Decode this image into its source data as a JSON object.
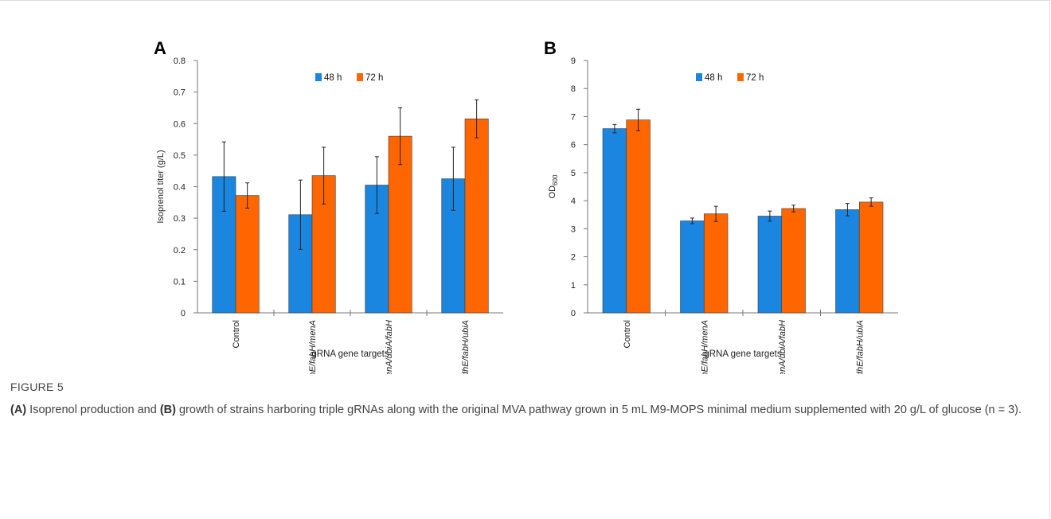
{
  "colors": {
    "s48": "#1a86e0",
    "s72": "#ff6600",
    "axis": "#555555",
    "err": "#222222"
  },
  "chart_data": [
    {
      "panel": "A",
      "type": "bar",
      "xlabel": "gRNA gene targets",
      "ylabel": "Isoprenol titer (g/L)",
      "ylim": [
        0,
        0.8
      ],
      "yticks": [
        "0",
        "0.1",
        "0.2",
        "0.3",
        "0.4",
        "0.5",
        "0.6",
        "0.7",
        "0.8"
      ],
      "categories": [
        "Control",
        "adhE/fabH/menA",
        "menA/ubiA/fabH",
        "adhE/fabH/ubiA"
      ],
      "series": [
        {
          "name": "48 h",
          "values": [
            0.432,
            0.311,
            0.405,
            0.425
          ],
          "errors": [
            0.11,
            0.11,
            0.09,
            0.1
          ]
        },
        {
          "name": "72 h",
          "values": [
            0.372,
            0.435,
            0.56,
            0.615
          ],
          "errors": [
            0.04,
            0.09,
            0.09,
            0.06
          ]
        }
      ],
      "legend": "top-center"
    },
    {
      "panel": "B",
      "type": "bar",
      "xlabel": "gRNA gene targets",
      "ylabel": "OD600",
      "ylim": [
        0,
        9
      ],
      "yticks": [
        "0",
        "1",
        "2",
        "3",
        "4",
        "5",
        "6",
        "7",
        "8",
        "9"
      ],
      "categories": [
        "Control",
        "adhE/fabH/menA",
        "menA/ubiA/fabH",
        "adhE/fabH/ubiA"
      ],
      "series": [
        {
          "name": "48 h",
          "values": [
            6.57,
            3.28,
            3.45,
            3.68
          ],
          "errors": [
            0.15,
            0.1,
            0.18,
            0.22
          ]
        },
        {
          "name": "72 h",
          "values": [
            6.88,
            3.53,
            3.72,
            3.95
          ],
          "errors": [
            0.38,
            0.27,
            0.12,
            0.15
          ]
        }
      ],
      "legend": "top-center"
    }
  ],
  "caption": {
    "label": "FIGURE 5",
    "a_tag": "(A)",
    "a_text": " Isoprenol production and ",
    "b_tag": "(B)",
    "b_text": " growth of strains harboring triple gRNAs along with the original MVA pathway grown in 5 mL M9-MOPS minimal medium supplemented with 20 g/L of glucose (n = 3)."
  }
}
